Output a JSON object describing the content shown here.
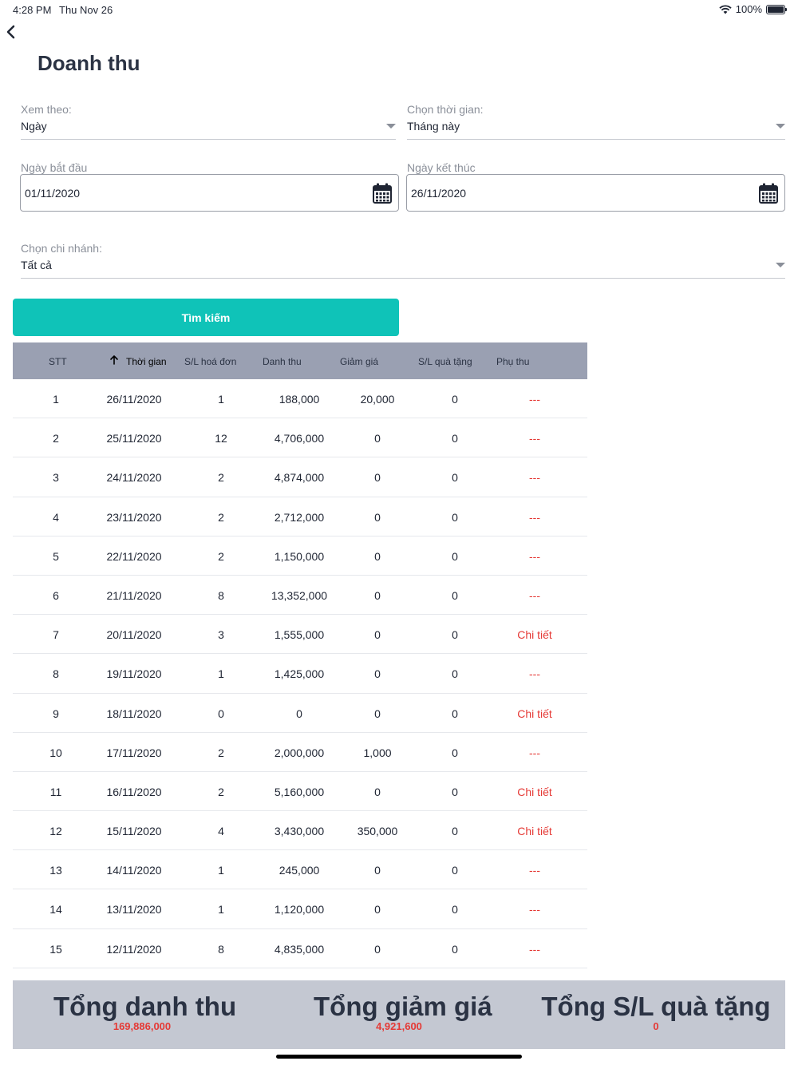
{
  "status_bar": {
    "time": "4:28 PM",
    "date": "Thu Nov 26",
    "battery": "100%"
  },
  "page": {
    "title": "Doanh thu"
  },
  "filters": {
    "view_by": {
      "label": "Xem theo:",
      "value": "Ngày"
    },
    "period": {
      "label": "Chọn thời gian:",
      "value": "Tháng này"
    },
    "start_date": {
      "label": "Ngày bắt đầu",
      "value": "01/11/2020"
    },
    "end_date": {
      "label": "Ngày kết thúc",
      "value": "26/11/2020"
    },
    "branch": {
      "label": "Chọn chi nhánh:",
      "value": "Tất cả"
    },
    "search_label": "Tìm kiếm"
  },
  "table": {
    "headers": {
      "stt": "STT",
      "time": "Thời gian",
      "invoices": "S/L hoá đơn",
      "revenue": "Danh thu",
      "discount": "Giảm giá",
      "gifts": "S/L quà tặng",
      "surcharge": "Phụ thu"
    },
    "rows": [
      {
        "stt": "1",
        "time": "26/11/2020",
        "invoices": "1",
        "revenue": "188,000",
        "discount": "20,000",
        "gifts": "0",
        "surcharge": "---"
      },
      {
        "stt": "2",
        "time": "25/11/2020",
        "invoices": "12",
        "revenue": "4,706,000",
        "discount": "0",
        "gifts": "0",
        "surcharge": "---"
      },
      {
        "stt": "3",
        "time": "24/11/2020",
        "invoices": "2",
        "revenue": "4,874,000",
        "discount": "0",
        "gifts": "0",
        "surcharge": "---"
      },
      {
        "stt": "4",
        "time": "23/11/2020",
        "invoices": "2",
        "revenue": "2,712,000",
        "discount": "0",
        "gifts": "0",
        "surcharge": "---"
      },
      {
        "stt": "5",
        "time": "22/11/2020",
        "invoices": "2",
        "revenue": "1,150,000",
        "discount": "0",
        "gifts": "0",
        "surcharge": "---"
      },
      {
        "stt": "6",
        "time": "21/11/2020",
        "invoices": "8",
        "revenue": "13,352,000",
        "discount": "0",
        "gifts": "0",
        "surcharge": "---"
      },
      {
        "stt": "7",
        "time": "20/11/2020",
        "invoices": "3",
        "revenue": "1,555,000",
        "discount": "0",
        "gifts": "0",
        "surcharge": "Chi tiết"
      },
      {
        "stt": "8",
        "time": "19/11/2020",
        "invoices": "1",
        "revenue": "1,425,000",
        "discount": "0",
        "gifts": "0",
        "surcharge": "---"
      },
      {
        "stt": "9",
        "time": "18/11/2020",
        "invoices": "0",
        "revenue": "0",
        "discount": "0",
        "gifts": "0",
        "surcharge": "Chi tiết"
      },
      {
        "stt": "10",
        "time": "17/11/2020",
        "invoices": "2",
        "revenue": "2,000,000",
        "discount": "1,000",
        "gifts": "0",
        "surcharge": "---"
      },
      {
        "stt": "11",
        "time": "16/11/2020",
        "invoices": "2",
        "revenue": "5,160,000",
        "discount": "0",
        "gifts": "0",
        "surcharge": "Chi tiết"
      },
      {
        "stt": "12",
        "time": "15/11/2020",
        "invoices": "4",
        "revenue": "3,430,000",
        "discount": "350,000",
        "gifts": "0",
        "surcharge": "Chi tiết"
      },
      {
        "stt": "13",
        "time": "14/11/2020",
        "invoices": "1",
        "revenue": "245,000",
        "discount": "0",
        "gifts": "0",
        "surcharge": "---"
      },
      {
        "stt": "14",
        "time": "13/11/2020",
        "invoices": "1",
        "revenue": "1,120,000",
        "discount": "0",
        "gifts": "0",
        "surcharge": "---"
      },
      {
        "stt": "15",
        "time": "12/11/2020",
        "invoices": "8",
        "revenue": "4,835,000",
        "discount": "0",
        "gifts": "0",
        "surcharge": "---"
      }
    ]
  },
  "summary": {
    "revenue": {
      "label": "Tổng danh thu",
      "value": "169,886,000"
    },
    "discount": {
      "label": "Tổng giảm giá",
      "value": "4,921,600"
    },
    "gifts": {
      "label": "Tổng S/L quà tặng",
      "value": "0"
    }
  },
  "colors": {
    "accent": "#0fc3b8",
    "header_bg": "#9aa0b2",
    "summary_bg": "#c4c8d2",
    "link": "#e53935"
  }
}
